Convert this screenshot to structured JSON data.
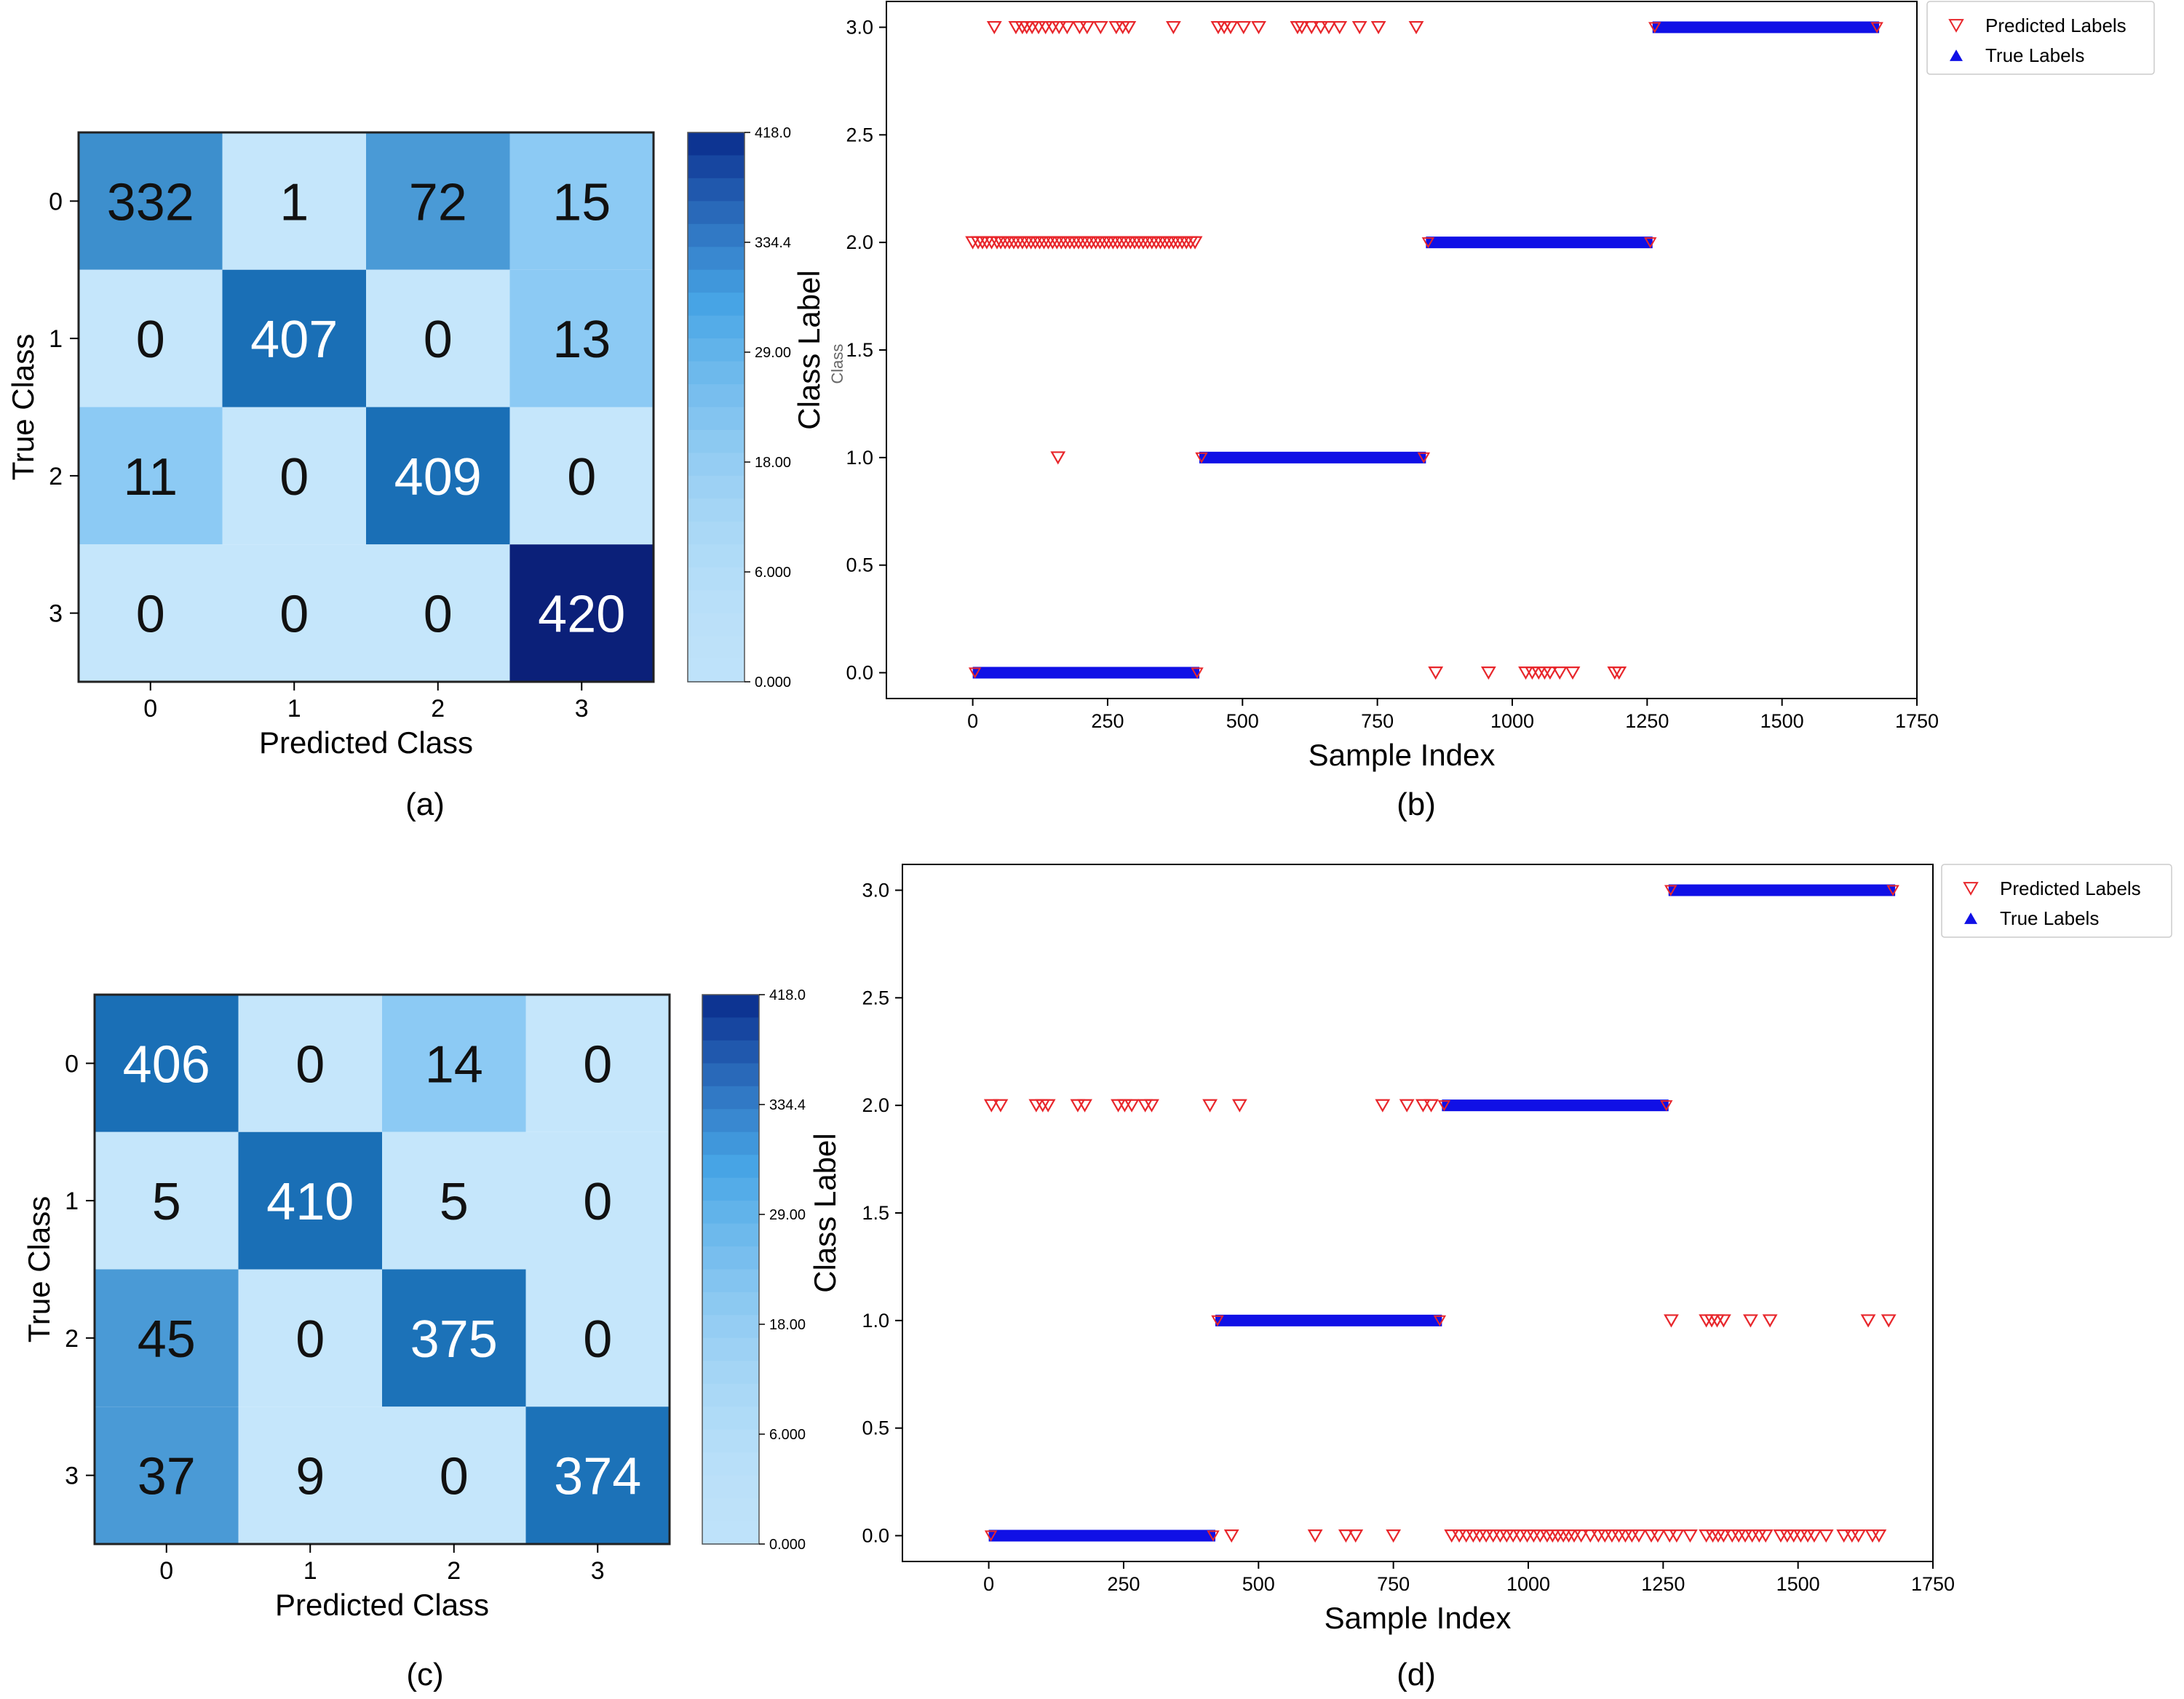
{
  "colors": {
    "predicted": "#e8262b",
    "true": "#1010e6",
    "cmap_low": "#c6e6fb",
    "cmap_mid": "#48a6e6",
    "cmap_high": "#0b2f8f",
    "cell_text_light": "#ffffff",
    "cell_text_dark": "#111111",
    "frame": "#222222"
  },
  "chart_data": [
    {
      "id": "a",
      "type": "heatmap",
      "caption": "(a)",
      "xlabel": "Predicted Class",
      "ylabel": "True Class",
      "x_ticks": [
        "0",
        "1",
        "2",
        "3"
      ],
      "y_ticks": [
        "0",
        "1",
        "2",
        "3"
      ],
      "matrix": [
        [
          332,
          1,
          72,
          15
        ],
        [
          0,
          407,
          0,
          13
        ],
        [
          11,
          0,
          409,
          0
        ],
        [
          0,
          0,
          0,
          420
        ]
      ],
      "colorbar_ticks": [
        "418.0",
        "334.4",
        "29.00",
        "18.00",
        "6.000",
        "0.000"
      ]
    },
    {
      "id": "b",
      "type": "scatter",
      "caption": "(b)",
      "xlabel": "Sample Index",
      "ylabel": "Class Label",
      "ylabel_ghost": "Class",
      "xlim": [
        -160,
        1750
      ],
      "ylim": [
        -0.12,
        3.12
      ],
      "x_ticks": [
        "0",
        "250",
        "500",
        "750",
        "1000",
        "1250",
        "1500",
        "1750"
      ],
      "y_ticks": [
        "0.0",
        "0.5",
        "1.0",
        "1.5",
        "2.0",
        "2.5",
        "3.0"
      ],
      "legend": [
        "Predicted Labels",
        "True Labels"
      ],
      "true_segments": [
        {
          "from": 0,
          "to": 420,
          "class": 0
        },
        {
          "from": 420,
          "to": 840,
          "class": 1
        },
        {
          "from": 840,
          "to": 1260,
          "class": 2
        },
        {
          "from": 1260,
          "to": 1680,
          "class": 3
        }
      ],
      "predicted_outliers": [
        {
          "class": 3,
          "x": [
            40,
            80,
            92,
            100,
            110,
            122,
            135,
            148,
            160,
            175,
            198,
            212,
            237,
            266,
            278,
            289,
            372,
            455,
            466,
            478,
            502,
            530,
            602,
            610,
            628,
            645,
            660,
            680,
            717,
            752,
            822
          ]
        },
        {
          "class": 2,
          "x": [
            0,
            10,
            18,
            26,
            35,
            45,
            52,
            60,
            68,
            76,
            84,
            92,
            100,
            108,
            116,
            124,
            132,
            140,
            148,
            156,
            164,
            172,
            180,
            188,
            196,
            204,
            212,
            220,
            228,
            236,
            244,
            252,
            260,
            268,
            276,
            284,
            292,
            300,
            308,
            316,
            324,
            332,
            340,
            348,
            356,
            364,
            372,
            380,
            388,
            396,
            404,
            412
          ]
        },
        {
          "class": 1,
          "x": [
            158
          ]
        },
        {
          "class": 0,
          "x": [
            858,
            956,
            1025,
            1037,
            1049,
            1060,
            1070,
            1088,
            1112,
            1190,
            1198
          ]
        }
      ]
    },
    {
      "id": "c",
      "type": "heatmap",
      "caption": "(c)",
      "xlabel": "Predicted Class",
      "ylabel": "True Class",
      "x_ticks": [
        "0",
        "1",
        "2",
        "3"
      ],
      "y_ticks": [
        "0",
        "1",
        "2",
        "3"
      ],
      "matrix": [
        [
          406,
          0,
          14,
          0
        ],
        [
          5,
          410,
          5,
          0
        ],
        [
          45,
          0,
          375,
          0
        ],
        [
          37,
          9,
          0,
          374
        ]
      ],
      "colorbar_ticks": [
        "418.0",
        "334.4",
        "29.00",
        "18.00",
        "6.000",
        "0.000"
      ]
    },
    {
      "id": "d",
      "type": "scatter",
      "caption": "(d)",
      "xlabel": "Sample Index",
      "ylabel": "Class Label",
      "xlim": [
        -160,
        1750
      ],
      "ylim": [
        -0.12,
        3.12
      ],
      "x_ticks": [
        "0",
        "250",
        "500",
        "750",
        "1000",
        "1250",
        "1500",
        "1750"
      ],
      "y_ticks": [
        "0.0",
        "0.5",
        "1.0",
        "1.5",
        "2.0",
        "2.5",
        "3.0"
      ],
      "legend": [
        "Predicted Labels",
        "True Labels"
      ],
      "true_segments": [
        {
          "from": 0,
          "to": 420,
          "class": 0
        },
        {
          "from": 420,
          "to": 840,
          "class": 1
        },
        {
          "from": 840,
          "to": 1260,
          "class": 2
        },
        {
          "from": 1260,
          "to": 1680,
          "class": 3
        }
      ],
      "predicted_outliers": [
        {
          "class": 2,
          "x": [
            5,
            22,
            88,
            100,
            110,
            165,
            178,
            240,
            252,
            265,
            290,
            302,
            410,
            465,
            730,
            775,
            805,
            820
          ]
        },
        {
          "class": 1,
          "x": [
            1265,
            1330,
            1340,
            1350,
            1362,
            1412,
            1448,
            1630,
            1668
          ]
        },
        {
          "class": 0,
          "x": [
            450,
            605,
            662,
            680,
            750,
            858,
            872,
            885,
            898,
            910,
            922,
            935,
            948,
            960,
            972,
            985,
            998,
            1010,
            1022,
            1035,
            1045,
            1055,
            1065,
            1075,
            1085,
            1098,
            1115,
            1130,
            1142,
            1155,
            1168,
            1180,
            1192,
            1205,
            1228,
            1240,
            1262,
            1275,
            1300,
            1330,
            1342,
            1352,
            1362,
            1378,
            1390,
            1402,
            1415,
            1428,
            1440,
            1468,
            1480,
            1492,
            1505,
            1518,
            1530,
            1552,
            1585,
            1600,
            1612,
            1638,
            1650
          ]
        }
      ]
    }
  ]
}
